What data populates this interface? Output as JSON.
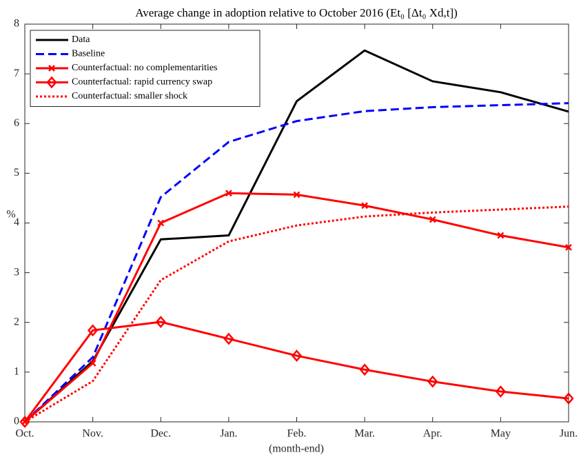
{
  "chart_data": {
    "type": "line",
    "title": "Average change in adoption relative to October 2016 (Et₀ [Δt₀ Xd,t])",
    "x_label": "(month-end)",
    "y_label": "%",
    "categories": [
      "Oct.",
      "Nov.",
      "Dec.",
      "Jan.",
      "Feb.",
      "Mar.",
      "Apr.",
      "May",
      "Jun."
    ],
    "ylim": [
      0,
      8
    ],
    "yticks": [
      0,
      1,
      2,
      3,
      4,
      5,
      6,
      7,
      8
    ],
    "grid": false,
    "legend": "upper-left",
    "series": [
      {
        "name": "Data",
        "color": "#000000",
        "line_style": "solid",
        "marker": "none",
        "values": [
          0,
          1.22,
          3.67,
          3.75,
          6.45,
          7.47,
          6.85,
          6.63,
          6.24
        ]
      },
      {
        "name": "Baseline",
        "color": "#0000ff",
        "line_style": "dashed",
        "marker": "none",
        "values": [
          0,
          1.3,
          4.52,
          5.63,
          6.05,
          6.25,
          6.33,
          6.37,
          6.41
        ]
      },
      {
        "name": "Counterfactual: no complementarities",
        "color": "#ff0000",
        "line_style": "solid",
        "marker": "x",
        "values": [
          0,
          1.18,
          4.0,
          4.6,
          4.57,
          4.35,
          4.07,
          3.75,
          3.51
        ]
      },
      {
        "name": "Counterfactual: rapid currency swap",
        "color": "#ff0000",
        "line_style": "solid",
        "marker": "diamond",
        "values": [
          0,
          1.84,
          2.01,
          1.67,
          1.33,
          1.05,
          0.81,
          0.61,
          0.47
        ]
      },
      {
        "name": "Counterfactual: smaller shock",
        "color": "#ff0000",
        "line_style": "dotted",
        "marker": "none",
        "values": [
          0,
          0.82,
          2.85,
          3.63,
          3.95,
          4.13,
          4.21,
          4.27,
          4.33
        ]
      }
    ]
  }
}
